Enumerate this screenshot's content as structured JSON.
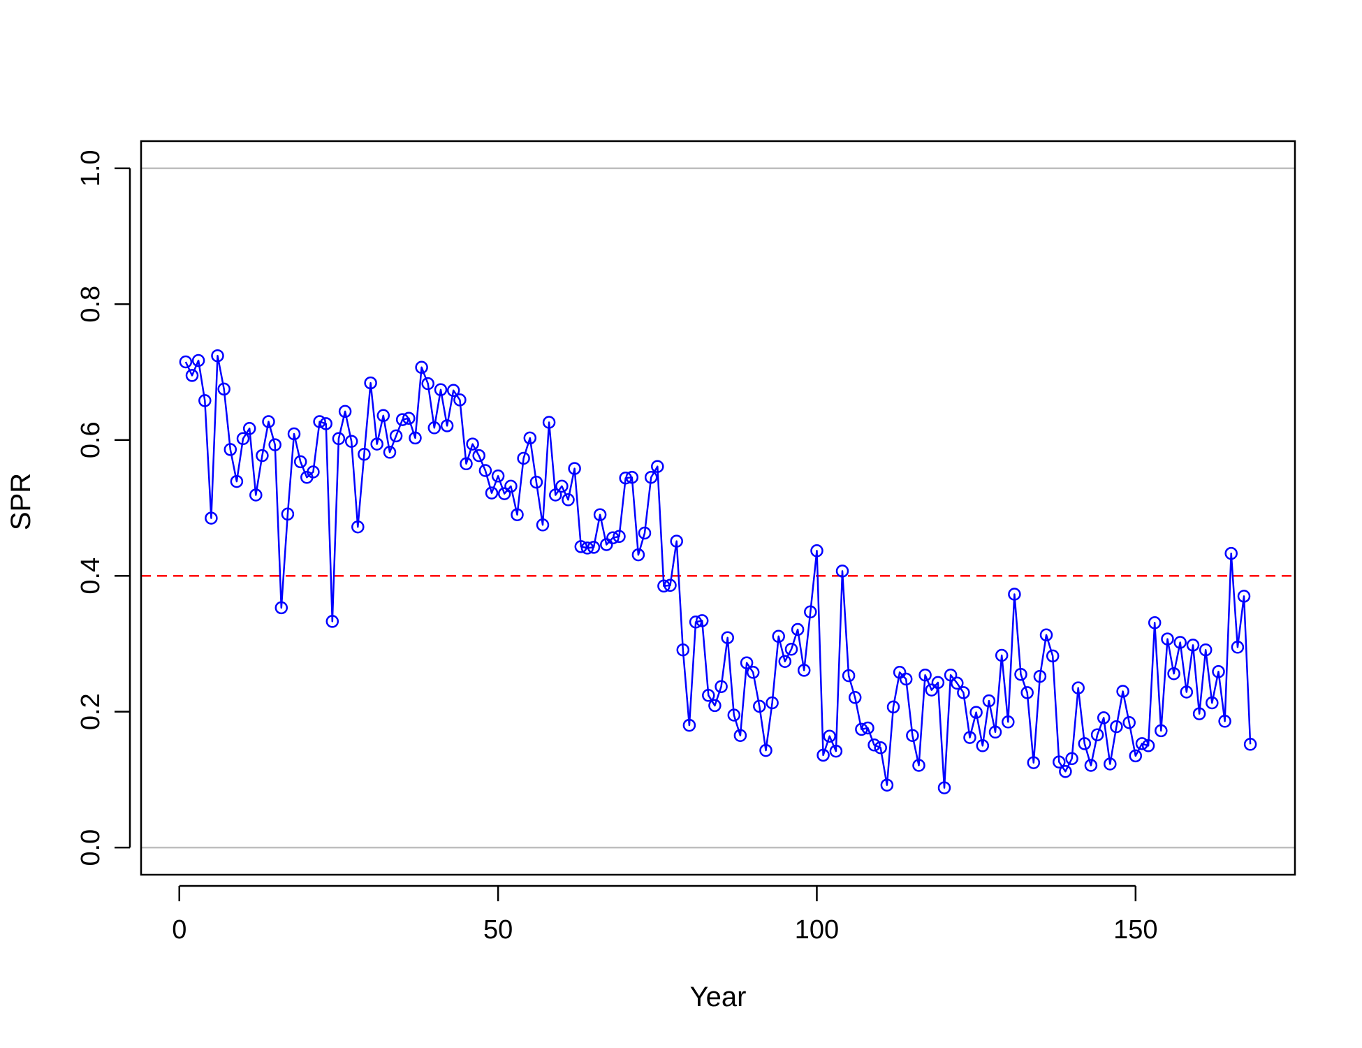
{
  "chart_data": {
    "type": "line",
    "title": "",
    "xlabel": "Year",
    "ylabel": "SPR",
    "xlim": [
      -6,
      175
    ],
    "ylim": [
      -0.04,
      1.04
    ],
    "x_ticks": [
      "0",
      "50",
      "100",
      "150"
    ],
    "x_tick_values": [
      0,
      50,
      100,
      150
    ],
    "y_ticks": [
      "0.0",
      "0.2",
      "0.4",
      "0.6",
      "0.8",
      "1.0"
    ],
    "y_tick_values": [
      0,
      0.2,
      0.4,
      0.6,
      0.8,
      1.0
    ],
    "grid": false,
    "legend": "none",
    "reference_lines": [
      {
        "y": 0.0,
        "color": "#bebebe",
        "style": "solid"
      },
      {
        "y": 1.0,
        "color": "#bebebe",
        "style": "solid"
      },
      {
        "y": 0.4,
        "color": "#ff0000",
        "style": "dashed"
      }
    ],
    "series": [
      {
        "color": "#0000ff",
        "marker": "open-circle",
        "x": [
          1,
          2,
          3,
          4,
          5,
          6,
          7,
          8,
          9,
          10,
          11,
          12,
          13,
          14,
          15,
          16,
          17,
          18,
          19,
          20,
          21,
          22,
          23,
          24,
          25,
          26,
          27,
          28,
          29,
          30,
          31,
          32,
          33,
          34,
          35,
          36,
          37,
          38,
          39,
          40,
          41,
          42,
          43,
          44,
          45,
          46,
          47,
          48,
          49,
          50,
          51,
          52,
          53,
          54,
          55,
          56,
          57,
          58,
          59,
          60,
          61,
          62,
          63,
          64,
          65,
          66,
          67,
          68,
          69,
          70,
          71,
          72,
          73,
          74,
          75,
          76,
          77,
          78,
          79,
          80,
          81,
          82,
          83,
          84,
          85,
          86,
          87,
          88,
          89,
          90,
          91,
          92,
          93,
          94,
          95,
          96,
          97,
          98,
          99,
          100,
          101,
          102,
          103,
          104,
          105,
          106,
          107,
          108,
          109,
          110,
          111,
          112,
          113,
          114,
          115,
          116,
          117,
          118,
          119,
          120,
          121,
          122,
          123,
          124,
          125,
          126,
          127,
          128,
          129,
          130,
          131,
          132,
          133,
          134,
          135,
          136,
          137,
          138,
          139,
          140,
          141,
          142,
          143,
          144,
          145,
          146,
          147,
          148,
          149,
          150,
          151,
          152,
          153,
          154,
          155,
          156,
          157,
          158,
          159,
          160,
          161,
          162,
          163,
          164,
          165,
          166,
          167,
          168
        ],
        "values": [
          0.715,
          0.695,
          0.717,
          0.658,
          0.485,
          0.724,
          0.675,
          0.586,
          0.539,
          0.602,
          0.617,
          0.519,
          0.577,
          0.627,
          0.593,
          0.353,
          0.491,
          0.609,
          0.568,
          0.545,
          0.553,
          0.627,
          0.624,
          0.333,
          0.602,
          0.642,
          0.598,
          0.472,
          0.579,
          0.684,
          0.594,
          0.636,
          0.582,
          0.606,
          0.63,
          0.632,
          0.603,
          0.707,
          0.683,
          0.618,
          0.674,
          0.621,
          0.673,
          0.659,
          0.565,
          0.594,
          0.577,
          0.555,
          0.522,
          0.547,
          0.521,
          0.532,
          0.49,
          0.573,
          0.603,
          0.538,
          0.475,
          0.626,
          0.519,
          0.532,
          0.512,
          0.558,
          0.443,
          0.441,
          0.442,
          0.49,
          0.446,
          0.456,
          0.458,
          0.544,
          0.545,
          0.431,
          0.463,
          0.545,
          0.561,
          0.385,
          0.386,
          0.451,
          0.291,
          0.18,
          0.332,
          0.334,
          0.224,
          0.209,
          0.237,
          0.309,
          0.195,
          0.165,
          0.272,
          0.258,
          0.208,
          0.143,
          0.213,
          0.311,
          0.274,
          0.292,
          0.321,
          0.261,
          0.347,
          0.437,
          0.136,
          0.164,
          0.142,
          0.407,
          0.253,
          0.221,
          0.174,
          0.176,
          0.151,
          0.147,
          0.092,
          0.207,
          0.258,
          0.248,
          0.165,
          0.121,
          0.254,
          0.232,
          0.243,
          0.088,
          0.254,
          0.242,
          0.228,
          0.162,
          0.199,
          0.15,
          0.216,
          0.17,
          0.283,
          0.185,
          0.373,
          0.255,
          0.228,
          0.125,
          0.252,
          0.313,
          0.282,
          0.126,
          0.112,
          0.131,
          0.235,
          0.153,
          0.121,
          0.166,
          0.191,
          0.123,
          0.178,
          0.23,
          0.184,
          0.135,
          0.153,
          0.15,
          0.331,
          0.172,
          0.307,
          0.256,
          0.302,
          0.229,
          0.298,
          0.197,
          0.291,
          0.213,
          0.259,
          0.186,
          0.433,
          0.295,
          0.37,
          0.152
        ]
      }
    ]
  }
}
